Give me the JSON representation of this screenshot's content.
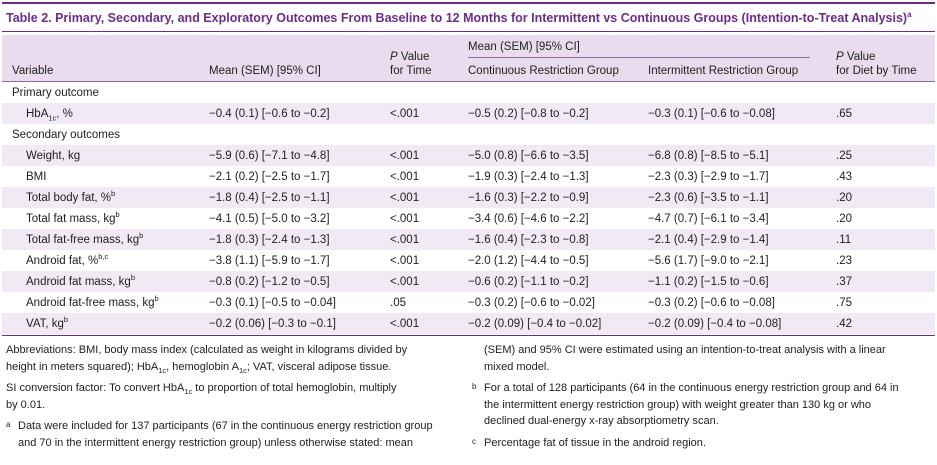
{
  "title": {
    "text": "Table 2. Primary, Secondary, and Exploratory Outcomes From Baseline to 12 Months for Intermittent vs Continuous Groups (Intention-to-Treat Analysis)",
    "marker": "a"
  },
  "header": {
    "variable": "Variable",
    "mean": "Mean (SEM) [95% CI]",
    "p_time_line1": "P",
    "p_time_line2": "Value",
    "p_time_line3": "for Time",
    "group_mean": "Mean (SEM) [95% CI]",
    "continuous": "Continuous Restriction Group",
    "intermittent": "Intermittent Restriction Group",
    "p_diet_line1": "P",
    "p_diet_line2": "Value",
    "p_diet_line3": "for Diet by Time"
  },
  "sections": {
    "primary": "Primary outcome",
    "secondary": "Secondary outcomes"
  },
  "rows": [
    {
      "name": "HbA",
      "sub": "1c",
      "unit": ", %",
      "sup": "",
      "mean": "−0.4 (0.1) [−0.6 to −0.2]",
      "p_time": "<.001",
      "cont": "−0.5 (0.2) [−0.8 to −0.2]",
      "inter": "−0.3 (0.1) [−0.6 to −0.08]",
      "p_diet": ".65"
    },
    {
      "name": "Weight, kg",
      "sub": "",
      "unit": "",
      "sup": "",
      "mean": "−5.9 (0.6) [−7.1 to −4.8]",
      "p_time": "<.001",
      "cont": "−5.0 (0.8) [−6.6 to −3.5]",
      "inter": "−6.8 (0.8) [−8.5 to −5.1]",
      "p_diet": ".25"
    },
    {
      "name": "BMI",
      "sub": "",
      "unit": "",
      "sup": "",
      "mean": "−2.1 (0.2) [−2.5 to −1.7]",
      "p_time": "<.001",
      "cont": "−1.9 (0.3) [−2.4 to −1.3]",
      "inter": "−2.3 (0.3) [−2.9 to −1.7]",
      "p_diet": ".43"
    },
    {
      "name": "Total body fat, %",
      "sub": "",
      "unit": "",
      "sup": "b",
      "mean": "−1.8 (0.4) [−2.5 to −1.1]",
      "p_time": "<.001",
      "cont": "−1.6 (0.3) [−2.2 to −0.9]",
      "inter": "−2.3 (0.6) [−3.5 to −1.1]",
      "p_diet": ".20"
    },
    {
      "name": "Total fat mass, kg",
      "sub": "",
      "unit": "",
      "sup": "b",
      "mean": "−4.1 (0.5) [−5.0 to −3.2]",
      "p_time": "<.001",
      "cont": "−3.4 (0.6) [−4.6 to −2.2]",
      "inter": "−4.7 (0.7) [−6.1 to −3.4]",
      "p_diet": ".20"
    },
    {
      "name": "Total fat-free mass, kg",
      "sub": "",
      "unit": "",
      "sup": "b",
      "mean": "−1.8 (0.3) [−2.4 to −1.3]",
      "p_time": "<.001",
      "cont": "−1.6 (0.4) [−2.3 to −0.8]",
      "inter": "−2.1 (0.4) [−2.9 to −1.4]",
      "p_diet": ".11"
    },
    {
      "name": "Android fat, %",
      "sub": "",
      "unit": "",
      "sup": "b,c",
      "mean": "−3.8 (1.1) [−5.9 to −1.7]",
      "p_time": "<.001",
      "cont": "−2.0 (1.2) [−4.4 to −0.5]",
      "inter": "−5.6 (1.7) [−9.0 to −2.1]",
      "p_diet": ".23"
    },
    {
      "name": "Android fat mass, kg",
      "sub": "",
      "unit": "",
      "sup": "b",
      "mean": "−0.8 (0.2) [−1.2 to −0.5]",
      "p_time": "<.001",
      "cont": "−0.6 (0.2) [−1.1 to −0.2]",
      "inter": "−1.1 (0.2) [−1.5 to −0.6]",
      "p_diet": ".37"
    },
    {
      "name": "Android fat-free mass, kg",
      "sub": "",
      "unit": "",
      "sup": "b",
      "mean": "−0.3 (0.1) [−0.5 to −0.04]",
      "p_time": ".05",
      "cont": "−0.3 (0.2) [−0.6 to −0.02]",
      "inter": "−0.3 (0.2) [−0.6 to −0.08]",
      "p_diet": ".75"
    },
    {
      "name": "VAT, kg",
      "sub": "",
      "unit": "",
      "sup": "b",
      "mean": "−0.2 (0.06) [−0.3 to −0.1]",
      "p_time": "<.001",
      "cont": "−0.2 (0.09) [−0.4 to −0.02]",
      "inter": "−0.2 (0.09) [−0.4 to −0.08]",
      "p_diet": ".42"
    }
  ],
  "notes": {
    "abbrev_1": "Abbreviations: BMI, body mass index (calculated as weight in kilograms divided by",
    "abbrev_2a": "height in meters squared); HbA",
    "abbrev_2_sub": "1c",
    "abbrev_2b": ", hemoglobin A",
    "abbrev_2_sub2": "1c",
    "abbrev_2c": "; VAT, visceral adipose tissue.",
    "si_1a": "SI conversion factor: To convert HbA",
    "si_1_sub": "1c",
    "si_1b": " to proportion of total hemoglobin, multiply",
    "si_2": "by 0.01.",
    "a_mark": "a",
    "a_1": "Data were included for 137 participants (67 in the continuous energy restriction group",
    "a_2": "and 70 in the intermittent energy restriction group) unless otherwise stated: mean",
    "a_3": "(SEM) and 95% CI were estimated using an intention-to-treat analysis with a linear",
    "a_4": "mixed model.",
    "b_mark": "b",
    "b_1": "For a total of 128 participants (64 in the continuous energy restriction group and 64 in",
    "b_2": "the intermittent energy restriction group) with weight greater than 130 kg or who",
    "b_3": "declined dual-energy x-ray absorptiometry scan.",
    "c_mark": "c",
    "c_1": "Percentage fat of tissue in the android region."
  }
}
